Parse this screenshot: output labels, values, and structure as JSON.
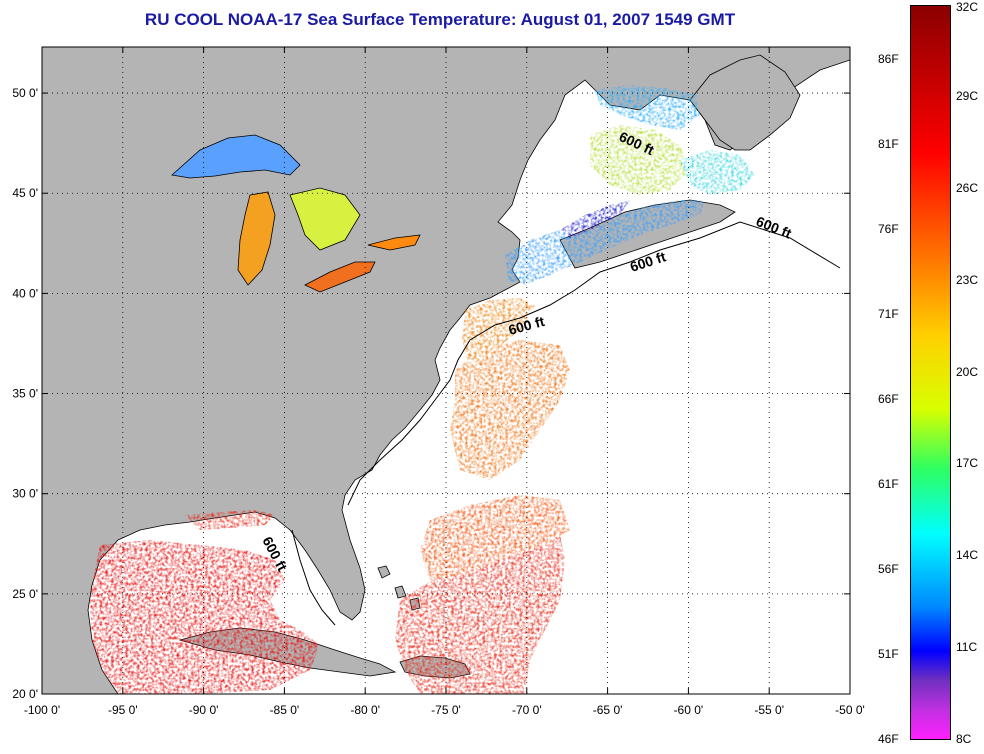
{
  "title": "RU COOL  NOAA-17  Sea Surface Temperature:  August 01, 2007 1549 GMT",
  "map": {
    "x_ticks": [
      {
        "value": -100,
        "label": "-100 0'"
      },
      {
        "value": -95,
        "label": "-95 0'"
      },
      {
        "value": -90,
        "label": "-90 0'"
      },
      {
        "value": -85,
        "label": "-85 0'"
      },
      {
        "value": -80,
        "label": "-80 0'"
      },
      {
        "value": -75,
        "label": "-75 0'"
      },
      {
        "value": -70,
        "label": "-70 0'"
      },
      {
        "value": -65,
        "label": "-65 0'"
      },
      {
        "value": -60,
        "label": "-60 0'"
      },
      {
        "value": -55,
        "label": "-55 0'"
      },
      {
        "value": -50,
        "label": "-50 0'"
      }
    ],
    "y_ticks": [
      {
        "value": 50,
        "label": "50 0'"
      },
      {
        "value": 45,
        "label": "45 0'"
      },
      {
        "value": 40,
        "label": "40 0'"
      },
      {
        "value": 35,
        "label": "35 0'"
      },
      {
        "value": 30,
        "label": "30 0'"
      },
      {
        "value": 25,
        "label": "25 0'"
      },
      {
        "value": 20,
        "label": "20 0'"
      }
    ],
    "lon_range": [
      -100,
      -50
    ],
    "lat_range": [
      20,
      52.3
    ],
    "contour_label": "600 ft",
    "colors": {
      "land": "#b4b4b4",
      "ocean": "#ffffff",
      "title": "#1a1aa6"
    }
  },
  "colorbar": {
    "celsius": [
      "32C",
      "29C",
      "26C",
      "23C",
      "20C",
      "17C",
      "14C",
      "11C",
      "8C"
    ],
    "fahrenheit": [
      "86F",
      "81F",
      "76F",
      "71F",
      "66F",
      "61F",
      "56F",
      "51F",
      "46F"
    ]
  }
}
